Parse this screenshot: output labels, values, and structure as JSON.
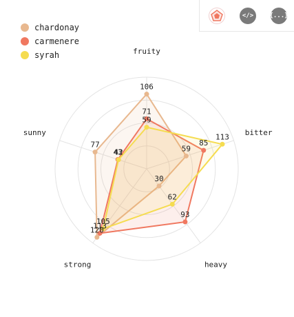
{
  "toolbar": {
    "buttons": [
      {
        "name": "radar-chart-icon",
        "glyph": ""
      },
      {
        "name": "code-icon",
        "glyph": "</>"
      },
      {
        "name": "json-icon",
        "glyph": "{...}"
      }
    ]
  },
  "chart_data": {
    "type": "radar",
    "axes": [
      "fruity",
      "bitter",
      "heavy",
      "strong",
      "sunny"
    ],
    "rmax": 130,
    "grid": true,
    "legend_position": "top-left",
    "series": [
      {
        "name": "chardonay",
        "color": "#e8b88f",
        "values": [
          106,
          59,
          30,
          120,
          77
        ]
      },
      {
        "name": "carmenere",
        "color": "#f07860",
        "values": [
          71,
          85,
          93,
          113,
          43
        ]
      },
      {
        "name": "syrah",
        "color": "#f5dc50",
        "values": [
          59,
          113,
          62,
          105,
          42
        ]
      }
    ]
  }
}
